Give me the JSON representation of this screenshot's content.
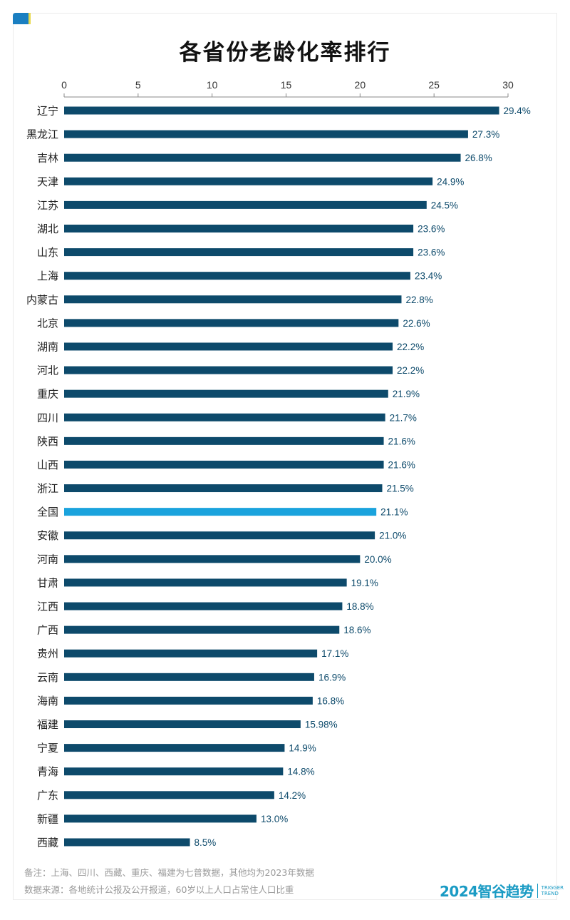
{
  "title": "各省份老龄化率排行",
  "notes": [
    "备注：上海、四川、西藏、重庆、福建为七普数据，其他均为2023年数据",
    "数据来源：各地统计公报及公开报道，60岁以上人口占常住人口比重"
  ],
  "logo": {
    "main": "2024智谷趋势",
    "sub1": "TRIGGER",
    "sub2": "TREND"
  },
  "colors": {
    "bar": "#0d4a6b",
    "highlight": "#1aa3dd",
    "label": "#0d4a6b"
  },
  "chart_data": {
    "type": "bar",
    "orientation": "horizontal",
    "title": "各省份老龄化率排行",
    "xlim": [
      0,
      30
    ],
    "xticks": [
      0,
      5,
      10,
      15,
      20,
      25,
      30
    ],
    "axis_position": "top",
    "grid": false,
    "highlight": "全国",
    "categories": [
      "辽宁",
      "黑龙江",
      "吉林",
      "天津",
      "江苏",
      "湖北",
      "山东",
      "上海",
      "内蒙古",
      "北京",
      "湖南",
      "河北",
      "重庆",
      "四川",
      "陕西",
      "山西",
      "浙江",
      "全国",
      "安徽",
      "河南",
      "甘肃",
      "江西",
      "广西",
      "贵州",
      "云南",
      "海南",
      "福建",
      "宁夏",
      "青海",
      "广东",
      "新疆",
      "西藏"
    ],
    "values": [
      29.4,
      27.3,
      26.8,
      24.9,
      24.5,
      23.6,
      23.6,
      23.4,
      22.8,
      22.6,
      22.2,
      22.2,
      21.9,
      21.7,
      21.6,
      21.6,
      21.5,
      21.1,
      21.0,
      20.0,
      19.1,
      18.8,
      18.6,
      17.1,
      16.9,
      16.8,
      15.98,
      14.9,
      14.8,
      14.2,
      13.0,
      8.5
    ],
    "labels": [
      "29.4%",
      "27.3%",
      "26.8%",
      "24.9%",
      "24.5%",
      "23.6%",
      "23.6%",
      "23.4%",
      "22.8%",
      "22.6%",
      "22.2%",
      "22.2%",
      "21.9%",
      "21.7%",
      "21.6%",
      "21.6%",
      "21.5%",
      "21.1%",
      "21.0%",
      "20.0%",
      "19.1%",
      "18.8%",
      "18.6%",
      "17.1%",
      "16.9%",
      "16.8%",
      "15.98%",
      "14.9%",
      "14.8%",
      "14.2%",
      "13.0%",
      "8.5%"
    ]
  }
}
